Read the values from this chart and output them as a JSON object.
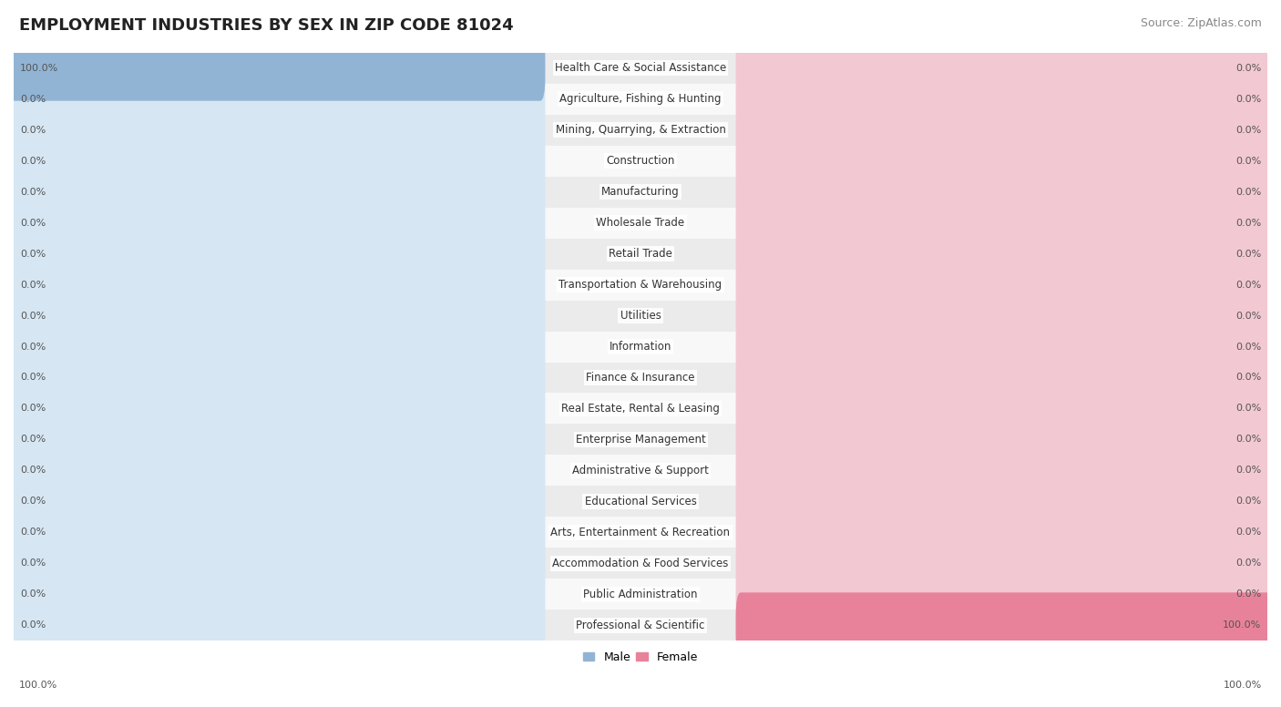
{
  "title": "EMPLOYMENT INDUSTRIES BY SEX IN ZIP CODE 81024",
  "source": "Source: ZipAtlas.com",
  "industries": [
    "Health Care & Social Assistance",
    "Agriculture, Fishing & Hunting",
    "Mining, Quarrying, & Extraction",
    "Construction",
    "Manufacturing",
    "Wholesale Trade",
    "Retail Trade",
    "Transportation & Warehousing",
    "Utilities",
    "Information",
    "Finance & Insurance",
    "Real Estate, Rental & Leasing",
    "Enterprise Management",
    "Administrative & Support",
    "Educational Services",
    "Arts, Entertainment & Recreation",
    "Accommodation & Food Services",
    "Public Administration",
    "Professional & Scientific"
  ],
  "male_values": [
    100.0,
    0.0,
    0.0,
    0.0,
    0.0,
    0.0,
    0.0,
    0.0,
    0.0,
    0.0,
    0.0,
    0.0,
    0.0,
    0.0,
    0.0,
    0.0,
    0.0,
    0.0,
    0.0
  ],
  "female_values": [
    0.0,
    0.0,
    0.0,
    0.0,
    0.0,
    0.0,
    0.0,
    0.0,
    0.0,
    0.0,
    0.0,
    0.0,
    0.0,
    0.0,
    0.0,
    0.0,
    0.0,
    0.0,
    100.0
  ],
  "male_color": "#92b4d4",
  "female_color": "#e8829a",
  "bar_bg_male": "#d6e6f3",
  "bar_bg_female": "#f2c8d3",
  "row_bg_even": "#ebebeb",
  "row_bg_odd": "#f8f8f8",
  "title_fontsize": 13,
  "source_fontsize": 9,
  "label_fontsize": 8.5,
  "value_fontsize": 8,
  "legend_fontsize": 9,
  "background_color": "#ffffff"
}
